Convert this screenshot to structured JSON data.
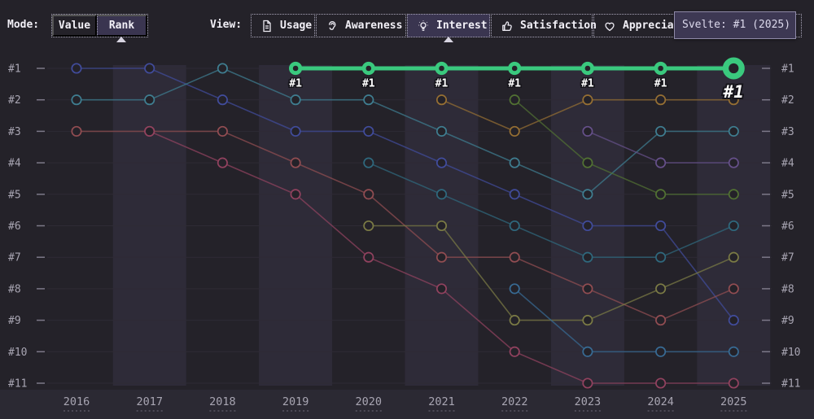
{
  "toolbar": {
    "mode_label": "Mode:",
    "modes": [
      {
        "label": "Value",
        "active": false
      },
      {
        "label": "Rank",
        "active": true
      }
    ],
    "view_label": "View:",
    "views": [
      {
        "label": "Usage",
        "icon": "document",
        "active": false
      },
      {
        "label": "Awareness",
        "icon": "ear",
        "active": false
      },
      {
        "label": "Interest",
        "icon": "lightbulb",
        "active": true
      },
      {
        "label": "Satisfaction",
        "icon": "thumbs-up",
        "active": false
      },
      {
        "label": "Appreciation",
        "icon": "heart",
        "active": false
      }
    ]
  },
  "tooltip": {
    "text": "Svelte: #1 (2025)"
  },
  "theme": {
    "background": "#242229",
    "band": "#2e2b38",
    "axis_strip": "#2b2933",
    "grid": "#2e2b35",
    "tick": "#7d7989",
    "axis_text": "#a8a5b2",
    "point_label": "#ffffff",
    "highlight": "#3ac97e"
  },
  "chart_data": {
    "type": "line",
    "mode": "rank",
    "metric": "Interest",
    "years": [
      2016,
      2017,
      2018,
      2019,
      2020,
      2021,
      2022,
      2023,
      2024,
      2025
    ],
    "rank_labels": [
      "#1",
      "#2",
      "#3",
      "#4",
      "#5",
      "#6",
      "#7",
      "#8",
      "#9",
      "#10",
      "#11"
    ],
    "ylim": [
      1,
      11
    ],
    "grid": true,
    "band_years": [
      2017,
      2019,
      2021,
      2023,
      2025
    ],
    "highlight_series": "Svelte",
    "highlight_point_label": "#1",
    "series": [
      {
        "name": "indigo-line",
        "color": "#414c9c",
        "ranks": {
          "2016": 1,
          "2017": 1,
          "2018": 2,
          "2019": 3,
          "2020": 3,
          "2021": 4,
          "2022": 5,
          "2023": 6,
          "2024": 6,
          "2025": 9
        }
      },
      {
        "name": "teal-line",
        "color": "#3f7e91",
        "ranks": {
          "2016": 2,
          "2017": 2,
          "2018": 1,
          "2019": 2,
          "2020": 2,
          "2021": 3,
          "2022": 4,
          "2023": 5,
          "2024": 3,
          "2025": 3
        }
      },
      {
        "name": "rose-line",
        "color": "#924d52",
        "ranks": {
          "2016": 3,
          "2017": 3,
          "2018": 3,
          "2019": 4,
          "2020": 5,
          "2021": 7,
          "2022": 7,
          "2023": 8,
          "2024": 9,
          "2025": 8
        }
      },
      {
        "name": "magenta-line",
        "color": "#92425f",
        "ranks": {
          "2017": 3,
          "2018": 4,
          "2019": 5,
          "2020": 7,
          "2021": 8,
          "2022": 10,
          "2023": 11,
          "2024": 11,
          "2025": 11
        }
      },
      {
        "name": "dark-teal-line",
        "color": "#2f697e",
        "ranks": {
          "2020": 4,
          "2021": 5,
          "2022": 6,
          "2023": 7,
          "2024": 7,
          "2025": 6
        }
      },
      {
        "name": "olive-line",
        "color": "#7b7b45",
        "ranks": {
          "2020": 6,
          "2021": 6,
          "2022": 9,
          "2023": 9,
          "2024": 8,
          "2025": 7
        }
      },
      {
        "name": "amber-line",
        "color": "#966f33",
        "ranks": {
          "2021": 2,
          "2022": 3,
          "2023": 2,
          "2024": 2,
          "2025": 2
        }
      },
      {
        "name": "green-olive-line",
        "color": "#527233",
        "ranks": {
          "2022": 2,
          "2023": 4,
          "2024": 5,
          "2025": 5
        }
      },
      {
        "name": "steel-blue-line",
        "color": "#386b94",
        "ranks": {
          "2022": 8,
          "2023": 10,
          "2024": 10,
          "2025": 10
        }
      },
      {
        "name": "purple-line",
        "color": "#66508a",
        "ranks": {
          "2023": 3,
          "2024": 4,
          "2025": 4
        }
      },
      {
        "name": "Svelte",
        "color": "#3ac97e",
        "highlight": true,
        "ranks": {
          "2019": 1,
          "2020": 1,
          "2021": 1,
          "2022": 1,
          "2023": 1,
          "2024": 1,
          "2025": 1
        }
      }
    ]
  }
}
